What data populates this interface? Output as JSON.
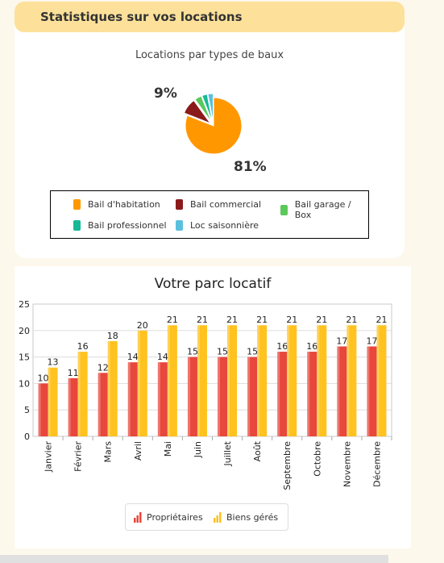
{
  "section_title": "Statistiques sur vos locations",
  "chart_data": [
    {
      "type": "pie",
      "title": "Locations par types de baux",
      "slices": [
        {
          "name": "Bail d'habitation",
          "value": 81,
          "label": "81%",
          "color": "#ff9800"
        },
        {
          "name": "Bail commercial",
          "value": 9,
          "label": "9%",
          "color": "#8b1a1a"
        },
        {
          "name": "Bail garage / Box",
          "value": 4,
          "label": "",
          "color": "#5bc85b"
        },
        {
          "name": "Bail professionnel",
          "value": 3,
          "label": "",
          "color": "#17b897"
        },
        {
          "name": "Loc saisonnière",
          "value": 3,
          "label": "",
          "color": "#5bc0de"
        }
      ],
      "legend_position": "bottom"
    },
    {
      "type": "bar",
      "title": "Votre parc locatif",
      "categories": [
        "Janvier",
        "Février",
        "Mars",
        "Avril",
        "Mai",
        "Juin",
        "Juillet",
        "Août",
        "Septembre",
        "Octobre",
        "Novembre",
        "Décembre"
      ],
      "series": [
        {
          "name": "Propriétaires",
          "values": [
            10,
            11,
            12,
            14,
            14,
            15,
            15,
            15,
            16,
            16,
            17,
            17
          ],
          "color": "#e8473c"
        },
        {
          "name": "Biens gérés",
          "values": [
            13,
            16,
            18,
            20,
            21,
            21,
            21,
            21,
            21,
            21,
            21,
            21
          ],
          "color": "#ffc21f"
        }
      ],
      "ylim": [
        0,
        25
      ],
      "yticks": [
        0,
        5,
        10,
        15,
        20,
        25
      ],
      "grid": true,
      "legend_position": "bottom"
    }
  ]
}
